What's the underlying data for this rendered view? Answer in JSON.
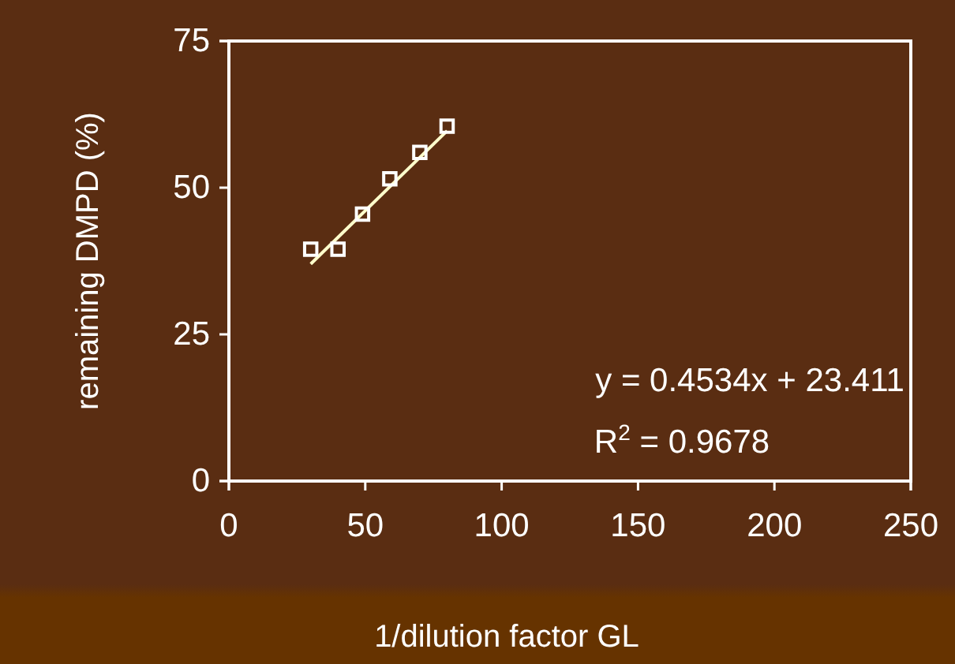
{
  "chart_data": {
    "type": "scatter",
    "xlabel": "1/dilution factor   GL",
    "ylabel": "remaining DMPD (%)",
    "xlim": [
      0,
      250
    ],
    "xticks": [
      0,
      50,
      100,
      150,
      200,
      250
    ],
    "ylim": [
      0,
      75
    ],
    "yticks": [
      0,
      25,
      50,
      75
    ],
    "grid": false,
    "marker": "square",
    "series": [
      {
        "color": "#ffffff",
        "x": [
          30,
          40,
          49,
          59,
          70,
          80
        ],
        "values": [
          39.5,
          39.5,
          45.5,
          51.5,
          56,
          60.5
        ]
      },
      {
        "type": "line",
        "marker": "none",
        "color": "#ffffcc",
        "x": [
          30,
          80
        ],
        "values": [
          37,
          59.7
        ]
      }
    ],
    "annotations": [
      "y = 0.4534x + 23.411",
      "R$^{2}$ = 0.9678"
    ]
  }
}
